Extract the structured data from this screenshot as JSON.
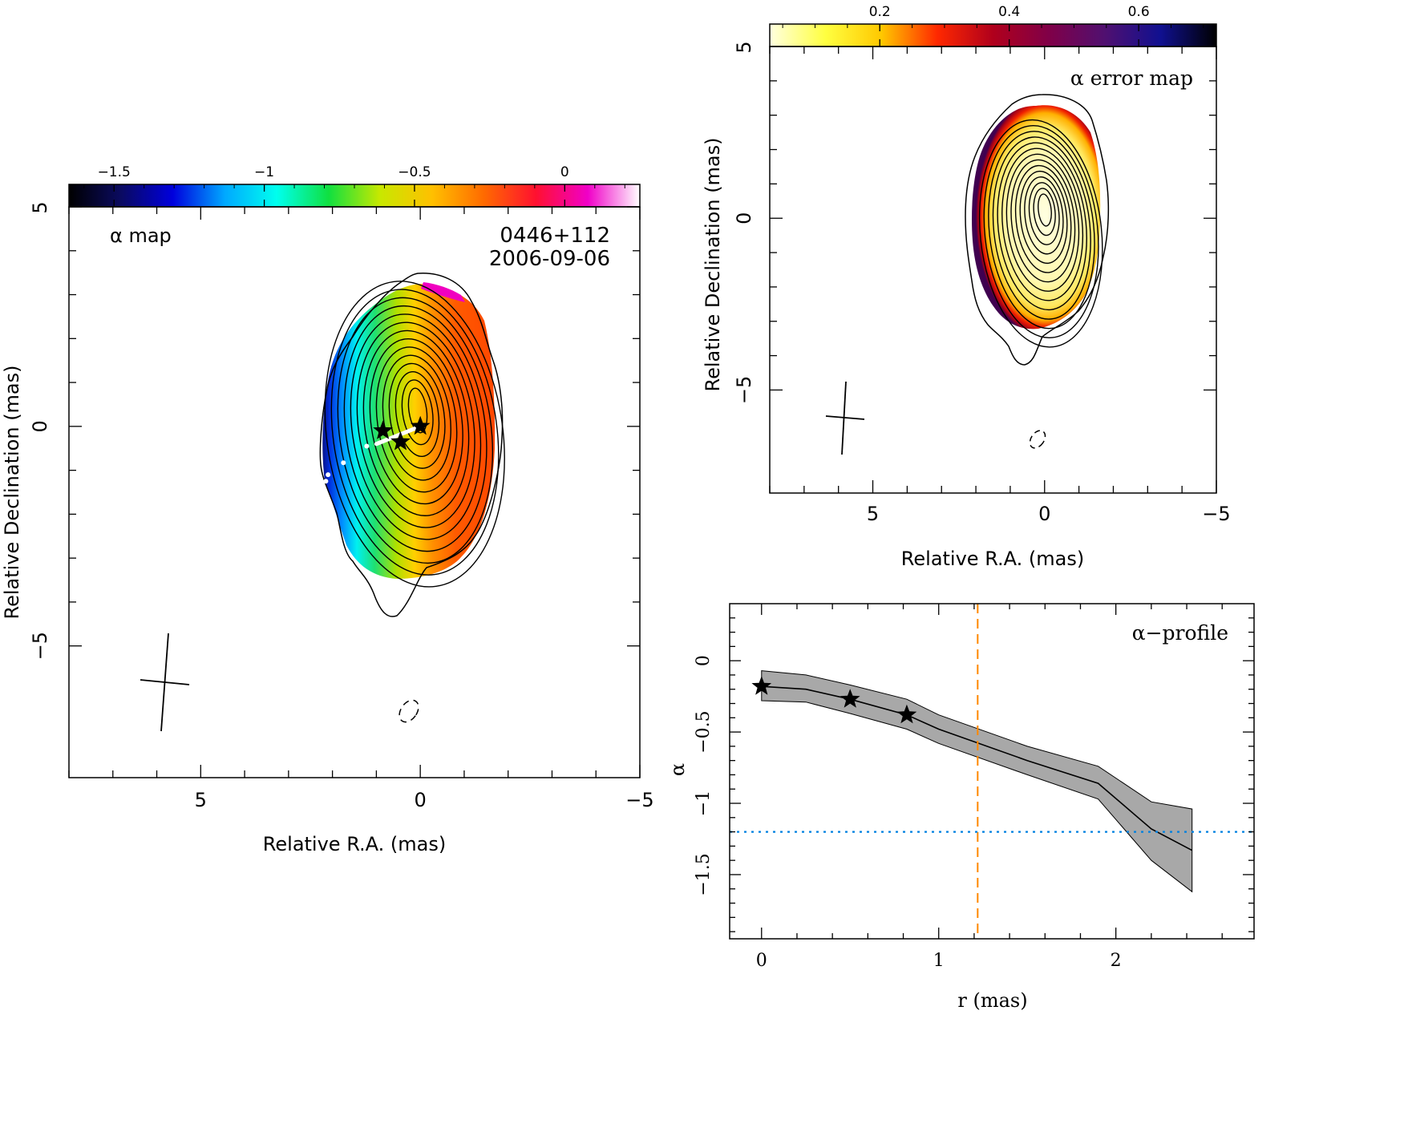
{
  "chart_data": [
    {
      "type": "heatmap",
      "panel": "alpha-map",
      "label": "α map",
      "source": "0446+112",
      "date": "2006-09-06",
      "xlabel": "Relative R.A. (mas)",
      "ylabel": "Relative Declination (mas)",
      "xlim": [
        8,
        -5
      ],
      "ylim": [
        -8,
        5
      ],
      "xticks": [
        {
          "v": 5,
          "label": "5"
        },
        {
          "v": 0,
          "label": "0"
        },
        {
          "v": -5,
          "label": "−5"
        }
      ],
      "yticks": [
        {
          "v": 5,
          "label": "5"
        },
        {
          "v": 0,
          "label": "0"
        },
        {
          "v": -5,
          "label": "−5"
        }
      ],
      "colorbar": {
        "range": [
          -1.65,
          0.25
        ],
        "ticks": [
          {
            "v": -1.5,
            "label": "−1.5"
          },
          {
            "v": -1,
            "label": "−1"
          },
          {
            "v": -0.5,
            "label": "−0.5"
          },
          {
            "v": 0,
            "label": "0"
          }
        ],
        "colors": [
          "#000000",
          "#0a0a60",
          "#0000dd",
          "#00a8ff",
          "#00ffee",
          "#10e040",
          "#c8e800",
          "#ffc000",
          "#ff6a00",
          "#ff1030",
          "#f000c8",
          "#ffffff"
        ]
      },
      "stars": [
        {
          "x": 0,
          "y": 0
        },
        {
          "x": 0.85,
          "y": -0.1
        },
        {
          "x": 0.45,
          "y": -0.35
        }
      ],
      "ridge": [
        {
          "x": 0,
          "y": 0
        },
        {
          "x": 1.0,
          "y": -0.4
        },
        {
          "x": 1.75,
          "y": -0.8
        },
        {
          "x": 2.15,
          "y": -1.25
        }
      ]
    },
    {
      "type": "heatmap",
      "panel": "alpha-error-map",
      "label": "α error map",
      "xlabel": "Relative R.A. (mas)",
      "ylabel": "Relative Declination (mas)",
      "xlim": [
        8,
        -5
      ],
      "ylim": [
        -8,
        5
      ],
      "xticks": [
        {
          "v": 5,
          "label": "5"
        },
        {
          "v": 0,
          "label": "0"
        },
        {
          "v": -5,
          "label": "−5"
        }
      ],
      "yticks": [
        {
          "v": 5,
          "label": "5"
        },
        {
          "v": 0,
          "label": "0"
        },
        {
          "v": -5,
          "label": "−5"
        }
      ],
      "colorbar": {
        "range": [
          0.03,
          0.72
        ],
        "ticks": [
          {
            "v": 0.2,
            "label": "0.2"
          },
          {
            "v": 0.4,
            "label": "0.4"
          },
          {
            "v": 0.6,
            "label": "0.6"
          }
        ],
        "colors": [
          "#ffffe0",
          "#ffff40",
          "#ffc800",
          "#ff2800",
          "#b0001c",
          "#800048",
          "#501070",
          "#101090",
          "#000000"
        ]
      }
    },
    {
      "type": "line",
      "panel": "alpha-profile",
      "label": "α−profile",
      "xlabel": "r (mas)",
      "ylabel": "α",
      "xlim": [
        -0.18,
        2.78
      ],
      "ylim": [
        -1.95,
        0.4
      ],
      "xticks": [
        {
          "v": 0,
          "label": "0"
        },
        {
          "v": 1,
          "label": "1"
        },
        {
          "v": 2,
          "label": "2"
        }
      ],
      "yticks": [
        {
          "v": 0,
          "label": "0"
        },
        {
          "v": -0.5,
          "label": "−0.5"
        },
        {
          "v": -1,
          "label": "−1"
        },
        {
          "v": -1.5,
          "label": "−1.5"
        }
      ],
      "series": [
        {
          "x": [
            0,
            0.25,
            0.5,
            0.82,
            1.0,
            1.5,
            1.9,
            2.2,
            2.43
          ],
          "y": [
            -0.18,
            -0.2,
            -0.27,
            -0.38,
            -0.48,
            -0.7,
            -0.86,
            -1.18,
            -1.33
          ],
          "lower": [
            -0.28,
            -0.29,
            -0.37,
            -0.48,
            -0.58,
            -0.8,
            -0.97,
            -1.4,
            -1.62
          ],
          "upper": [
            -0.07,
            -0.1,
            -0.17,
            -0.27,
            -0.38,
            -0.6,
            -0.74,
            -0.99,
            -1.04
          ]
        }
      ],
      "stars": [
        {
          "x": 0,
          "y": -0.18
        },
        {
          "x": 0.5,
          "y": -0.27
        },
        {
          "x": 0.82,
          "y": -0.38
        }
      ],
      "vline": {
        "x": 1.22,
        "color": "#ff8800"
      },
      "hline": {
        "y": -1.2,
        "color": "#0080e0"
      }
    }
  ]
}
